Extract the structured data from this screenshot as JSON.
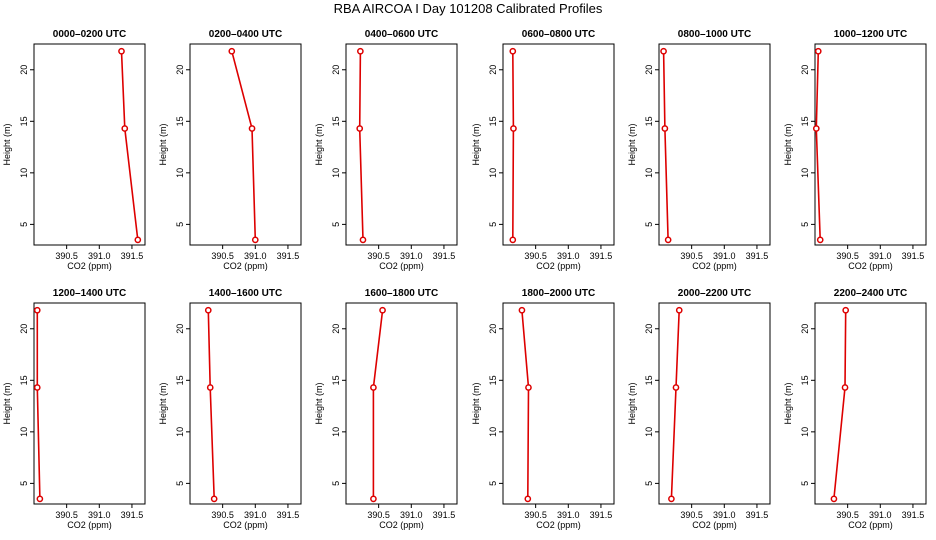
{
  "title": "RBA AIRCOA I  Day 101208  Calibrated Profiles",
  "colors": {
    "series": "#dd0000",
    "axis": "#000000"
  },
  "chart_data": [
    {
      "type": "line",
      "title": "0000–0200 UTC",
      "xlabel": "CO2 (ppm)",
      "ylabel": "Height (m)",
      "xlim": [
        390.0,
        391.7
      ],
      "ylim": [
        3,
        22.5
      ],
      "xticks": [
        "390.5",
        "391.0",
        "391.5"
      ],
      "yticks": [
        "5",
        "10",
        "15",
        "20"
      ],
      "x": [
        391.59,
        391.39,
        391.34
      ],
      "y": [
        3.5,
        14.3,
        21.8
      ]
    },
    {
      "type": "line",
      "title": "0200–0400 UTC",
      "xlabel": "CO2 (ppm)",
      "ylabel": "Height (m)",
      "xlim": [
        390.0,
        391.7
      ],
      "ylim": [
        3,
        22.5
      ],
      "xticks": [
        "390.5",
        "391.0",
        "391.5"
      ],
      "yticks": [
        "5",
        "10",
        "15",
        "20"
      ],
      "x": [
        391.0,
        390.95,
        390.64
      ],
      "y": [
        3.5,
        14.3,
        21.8
      ]
    },
    {
      "type": "line",
      "title": "0400–0600 UTC",
      "xlabel": "CO2 (ppm)",
      "ylabel": "Height (m)",
      "xlim": [
        390.0,
        391.7
      ],
      "ylim": [
        3,
        22.5
      ],
      "xticks": [
        "390.5",
        "391.0",
        "391.5"
      ],
      "yticks": [
        "5",
        "10",
        "15",
        "20"
      ],
      "x": [
        390.26,
        390.21,
        390.22
      ],
      "y": [
        3.5,
        14.3,
        21.8
      ]
    },
    {
      "type": "line",
      "title": "0600–0800 UTC",
      "xlabel": "CO2 (ppm)",
      "ylabel": "Height (m)",
      "xlim": [
        390.0,
        391.7
      ],
      "ylim": [
        3,
        22.5
      ],
      "xticks": [
        "390.5",
        "391.0",
        "391.5"
      ],
      "yticks": [
        "5",
        "10",
        "15",
        "20"
      ],
      "x": [
        390.15,
        390.16,
        390.15
      ],
      "y": [
        3.5,
        14.3,
        21.8
      ]
    },
    {
      "type": "line",
      "title": "0800–1000 UTC",
      "xlabel": "CO2 (ppm)",
      "ylabel": "Height (m)",
      "xlim": [
        390.0,
        391.7
      ],
      "ylim": [
        3,
        22.5
      ],
      "xticks": [
        "390.5",
        "391.0",
        "391.5"
      ],
      "yticks": [
        "5",
        "10",
        "15",
        "20"
      ],
      "x": [
        390.14,
        390.09,
        390.07
      ],
      "y": [
        3.5,
        14.3,
        21.8
      ]
    },
    {
      "type": "line",
      "title": "1000–1200 UTC",
      "xlabel": "CO2 (ppm)",
      "ylabel": "Height (m)",
      "xlim": [
        390.0,
        391.7
      ],
      "ylim": [
        3,
        22.5
      ],
      "xticks": [
        "390.5",
        "391.0",
        "391.5"
      ],
      "yticks": [
        "5",
        "10",
        "15",
        "20"
      ],
      "x": [
        390.08,
        390.02,
        390.05
      ],
      "y": [
        3.5,
        14.3,
        21.8
      ]
    },
    {
      "type": "line",
      "title": "1200–1400 UTC",
      "xlabel": "CO2 (ppm)",
      "ylabel": "Height (m)",
      "xlim": [
        390.0,
        391.7
      ],
      "ylim": [
        3,
        22.5
      ],
      "xticks": [
        "390.5",
        "391.0",
        "391.5"
      ],
      "yticks": [
        "5",
        "10",
        "15",
        "20"
      ],
      "x": [
        390.09,
        390.05,
        390.05
      ],
      "y": [
        3.5,
        14.3,
        21.8
      ]
    },
    {
      "type": "line",
      "title": "1400–1600 UTC",
      "xlabel": "CO2 (ppm)",
      "ylabel": "Height (m)",
      "xlim": [
        390.0,
        391.7
      ],
      "ylim": [
        3,
        22.5
      ],
      "xticks": [
        "390.5",
        "391.0",
        "391.5"
      ],
      "yticks": [
        "5",
        "10",
        "15",
        "20"
      ],
      "x": [
        390.37,
        390.31,
        390.28
      ],
      "y": [
        3.5,
        14.3,
        21.8
      ]
    },
    {
      "type": "line",
      "title": "1600–1800 UTC",
      "xlabel": "CO2 (ppm)",
      "ylabel": "Height (m)",
      "xlim": [
        390.0,
        391.7
      ],
      "ylim": [
        3,
        22.5
      ],
      "xticks": [
        "390.5",
        "391.0",
        "391.5"
      ],
      "yticks": [
        "5",
        "10",
        "15",
        "20"
      ],
      "x": [
        390.42,
        390.42,
        390.56
      ],
      "y": [
        3.5,
        14.3,
        21.8
      ]
    },
    {
      "type": "line",
      "title": "1800–2000 UTC",
      "xlabel": "CO2 (ppm)",
      "ylabel": "Height (m)",
      "xlim": [
        390.0,
        391.7
      ],
      "ylim": [
        3,
        22.5
      ],
      "xticks": [
        "390.5",
        "391.0",
        "391.5"
      ],
      "yticks": [
        "5",
        "10",
        "15",
        "20"
      ],
      "x": [
        390.38,
        390.39,
        390.29
      ],
      "y": [
        3.5,
        14.3,
        21.8
      ]
    },
    {
      "type": "line",
      "title": "2000–2200 UTC",
      "xlabel": "CO2 (ppm)",
      "ylabel": "Height (m)",
      "xlim": [
        390.0,
        391.7
      ],
      "ylim": [
        3,
        22.5
      ],
      "xticks": [
        "390.5",
        "391.0",
        "391.5"
      ],
      "yticks": [
        "5",
        "10",
        "15",
        "20"
      ],
      "x": [
        390.19,
        390.26,
        390.31
      ],
      "y": [
        3.5,
        14.3,
        21.8
      ]
    },
    {
      "type": "line",
      "title": "2200–2400 UTC",
      "xlabel": "CO2 (ppm)",
      "ylabel": "Height (m)",
      "xlim": [
        390.0,
        391.7
      ],
      "ylim": [
        3,
        22.5
      ],
      "xticks": [
        "390.5",
        "391.0",
        "391.5"
      ],
      "yticks": [
        "5",
        "10",
        "15",
        "20"
      ],
      "x": [
        390.29,
        390.46,
        390.47
      ],
      "y": [
        3.5,
        14.3,
        21.8
      ]
    }
  ]
}
